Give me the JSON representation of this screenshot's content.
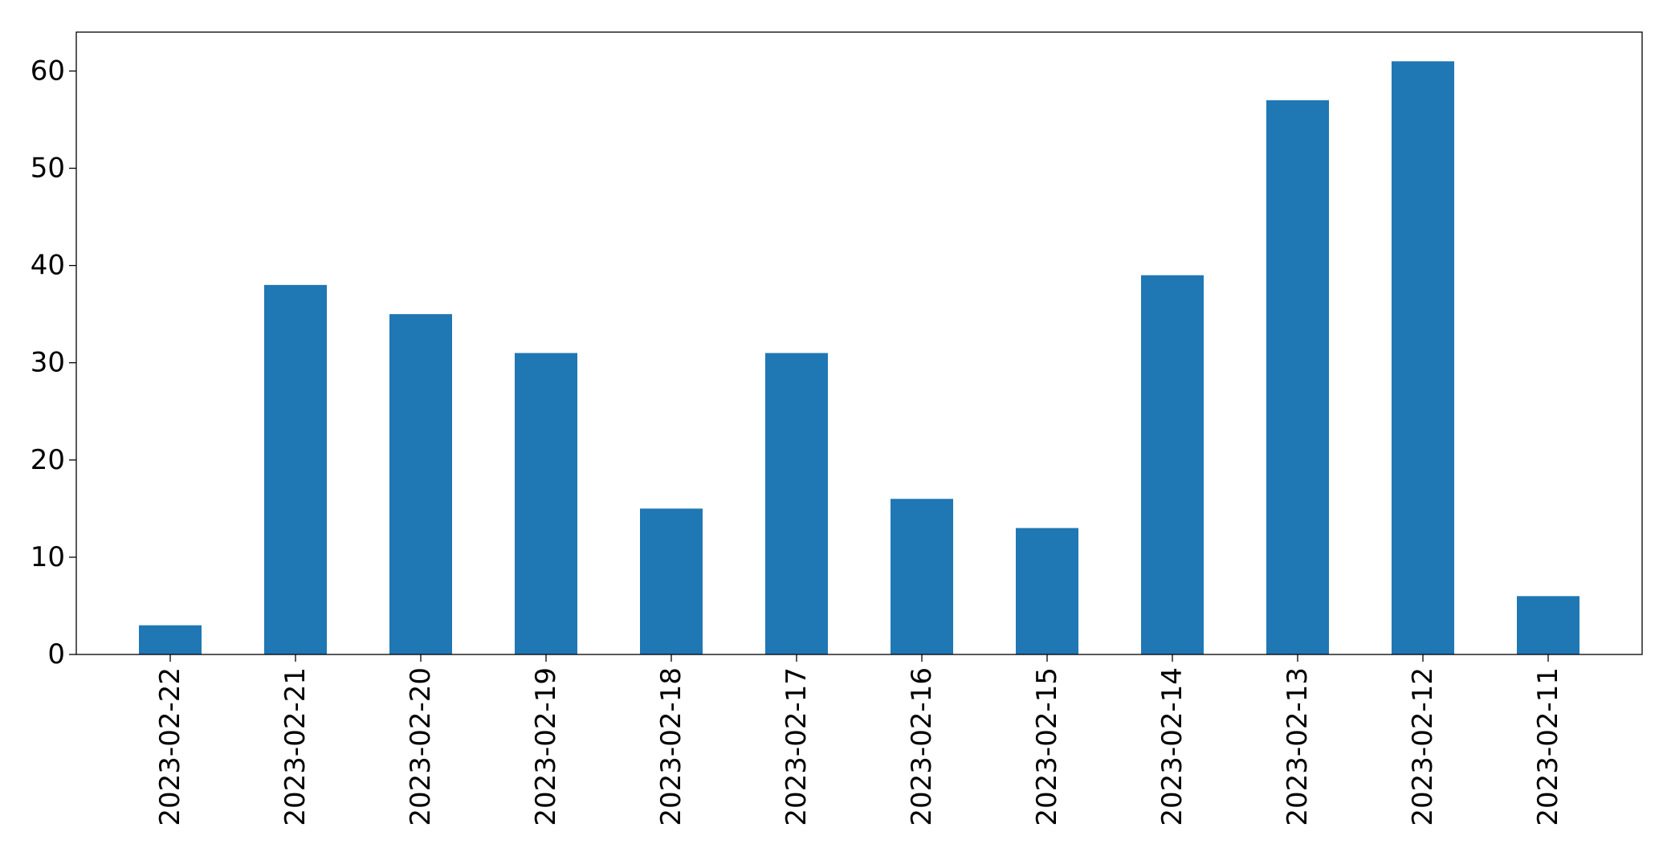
{
  "chart_data": {
    "type": "bar",
    "title": "",
    "xlabel": "",
    "ylabel": "",
    "categories": [
      "2023-02-22",
      "2023-02-21",
      "2023-02-20",
      "2023-02-19",
      "2023-02-18",
      "2023-02-17",
      "2023-02-16",
      "2023-02-15",
      "2023-02-14",
      "2023-02-13",
      "2023-02-12",
      "2023-02-11"
    ],
    "values": [
      3,
      38,
      35,
      31,
      15,
      31,
      16,
      13,
      39,
      57,
      61,
      6
    ],
    "ylim": [
      0,
      64
    ],
    "yticks": [
      0,
      10,
      20,
      30,
      40,
      50,
      60
    ],
    "grid": false,
    "legend": "none",
    "bar_color": "#1f77b4"
  }
}
